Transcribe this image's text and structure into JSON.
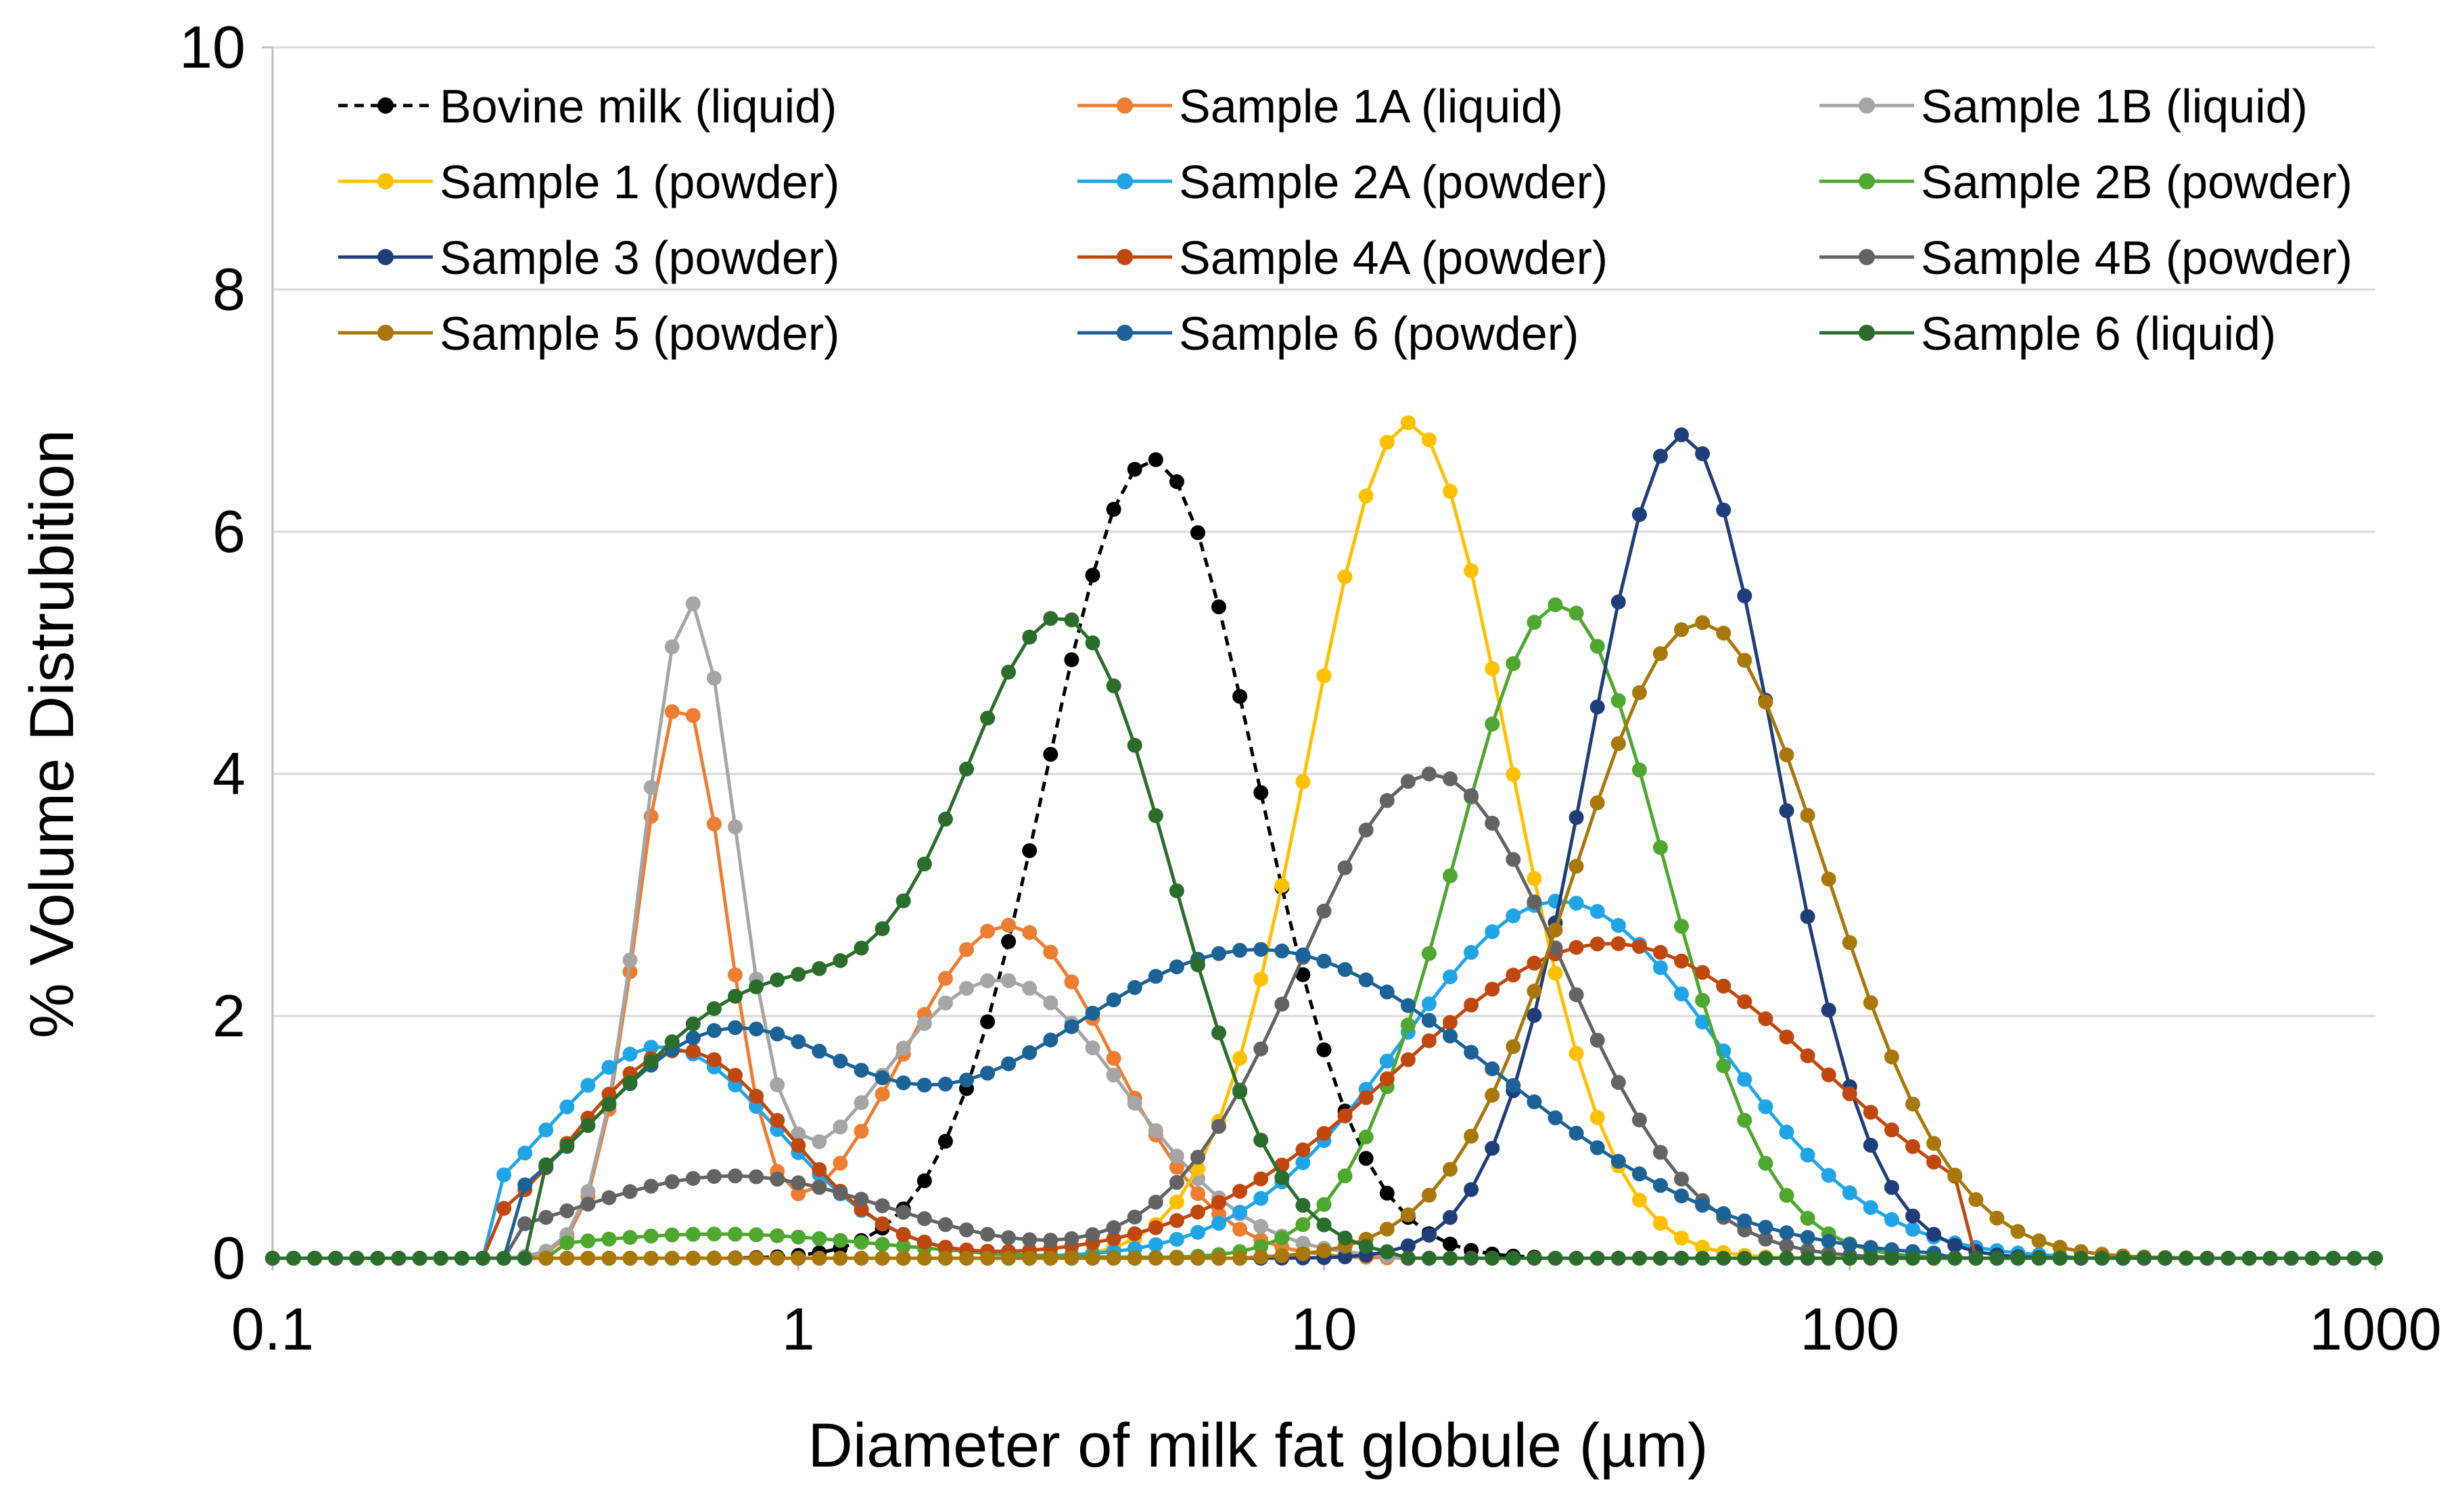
{
  "chart_data": {
    "type": "line",
    "title": "",
    "xlabel": "Diameter of milk fat globule (µm)",
    "ylabel": "% Volume Distrubition",
    "x_scale": "log",
    "xlim": [
      0.1,
      1000
    ],
    "ylim": [
      0,
      10
    ],
    "x_ticks": [
      {
        "value": 0.1,
        "label": "0.1"
      },
      {
        "value": 1,
        "label": "1"
      },
      {
        "value": 10,
        "label": "10"
      },
      {
        "value": 100,
        "label": "100"
      },
      {
        "value": 1000,
        "label": "1000"
      }
    ],
    "y_ticks": [
      {
        "value": 0,
        "label": "0"
      },
      {
        "value": 2,
        "label": "2"
      },
      {
        "value": 4,
        "label": "4"
      },
      {
        "value": 6,
        "label": "6"
      },
      {
        "value": 8,
        "label": "8"
      },
      {
        "value": 10,
        "label": "10"
      }
    ],
    "grid": "horizontal",
    "legend_position": "top, inside plot, 3 columns",
    "series": [
      {
        "name": "Bovine milk (liquid)",
        "color": "#000000",
        "dashed": true,
        "rng": [
          0.5,
          26
        ],
        "comps": [
          [
            6.6,
            4.7,
            0.2
          ]
        ]
      },
      {
        "name": "Sample 1A (liquid)",
        "color": "#ed7d31",
        "dashed": false,
        "rng": [
          0.26,
          26
        ],
        "comps": [
          [
            4.6,
            0.6,
            0.085
          ],
          [
            2.75,
            2.5,
            0.2
          ]
        ]
      },
      {
        "name": "Sample 1B (liquid)",
        "color": "#a5a5a5",
        "dashed": false,
        "rng": [
          0.3,
          14
        ],
        "comps": [
          [
            5.3,
            0.62,
            0.09
          ],
          [
            2.3,
            2.4,
            0.24
          ]
        ]
      },
      {
        "name": "Sample 1 (powder)",
        "color": "#ffc000",
        "dashed": false,
        "rng": [
          2.2,
          140
        ],
        "comps": [
          [
            6.9,
            14.5,
            0.19
          ]
        ]
      },
      {
        "name": "Sample 2A (powder)",
        "color": "#1fa5e6",
        "dashed": false,
        "rng": [
          0.26,
          260
        ],
        "comps": [
          [
            1.75,
            0.55,
            0.22
          ],
          [
            2.95,
            28,
            0.3
          ]
        ]
      },
      {
        "name": "Sample 2B (powder)",
        "color": "#4ea72e",
        "dashed": false,
        "rng": [
          0.35,
          190
        ],
        "comps": [
          [
            0.2,
            0.7,
            0.3
          ],
          [
            5.4,
            28,
            0.2
          ]
        ]
      },
      {
        "name": "Sample 3 (powder)",
        "color": "#1f3e79",
        "dashed": false,
        "rng": [
          3,
          320
        ],
        "comps": [
          [
            6.8,
            48,
            0.18
          ]
        ]
      },
      {
        "name": "Sample 4A (powder)",
        "color": "#c0480f",
        "dashed": false,
        "rng": [
          0.26,
          160
        ],
        "comps": [
          [
            1.72,
            0.6,
            0.2
          ],
          [
            2.6,
            35,
            0.4
          ]
        ]
      },
      {
        "name": "Sample 4B (powder)",
        "color": "#636363",
        "dashed": false,
        "rng": [
          0.3,
          160
        ],
        "comps": [
          [
            0.68,
            0.75,
            0.3
          ],
          [
            4.0,
            16,
            0.25
          ]
        ]
      },
      {
        "name": "Sample 5 (powder)",
        "color": "#a8780a",
        "dashed": false,
        "rng": [
          7,
          440
        ],
        "comps": [
          [
            5.25,
            52,
            0.24
          ]
        ]
      },
      {
        "name": "Sample 6 (powder)",
        "color": "#1b6296",
        "dashed": false,
        "rng": [
          0.3,
          150
        ],
        "comps": [
          [
            1.7,
            0.7,
            0.25
          ],
          [
            2.55,
            7.5,
            0.45
          ]
        ]
      },
      {
        "name": "Sample 6 (liquid)",
        "color": "#2b6e2b",
        "dashed": false,
        "rng": [
          0.32,
          14
        ],
        "comps": [
          [
            4.9,
            3.3,
            0.2
          ],
          [
            2.2,
            0.9,
            0.3
          ]
        ]
      }
    ]
  }
}
